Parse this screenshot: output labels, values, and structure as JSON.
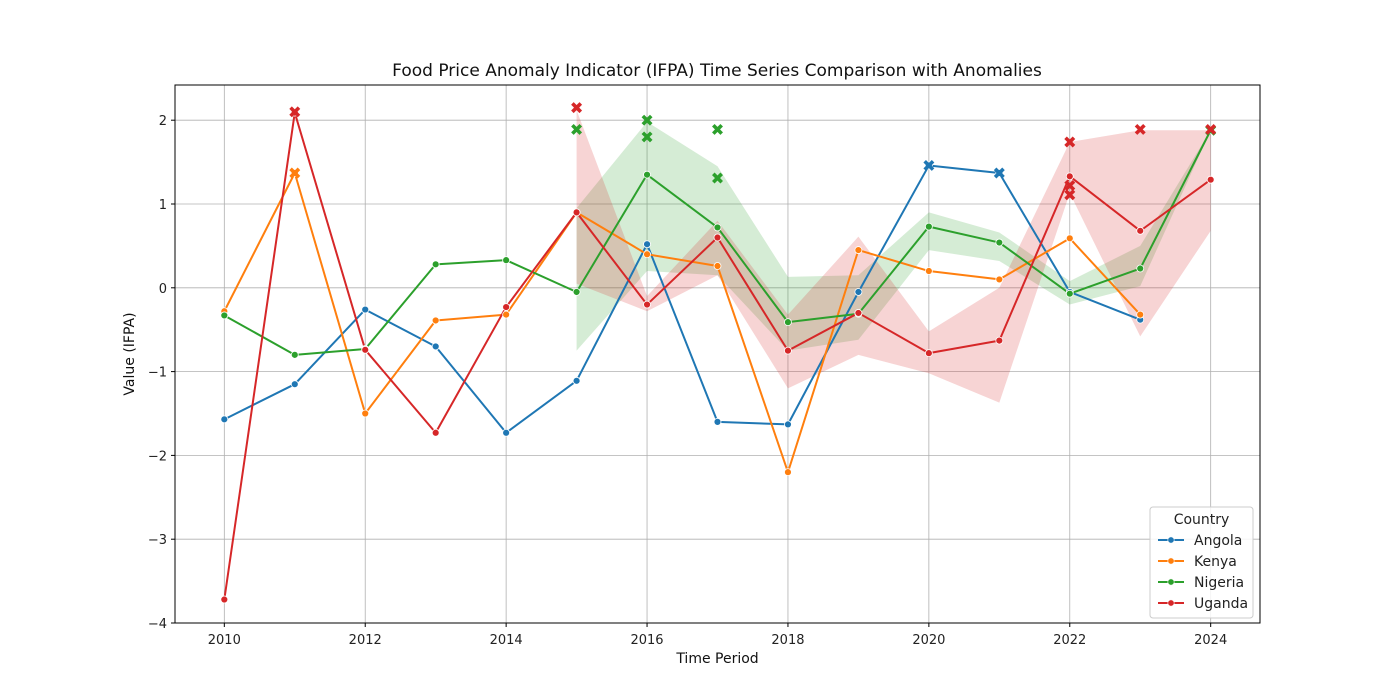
{
  "chart_data": {
    "type": "line",
    "title": "Food Price Anomaly Indicator (IFPA) Time Series Comparison with Anomalies",
    "xlabel": "Time Period",
    "ylabel": "Value (IFPA)",
    "xlim": [
      2009.3,
      2024.7
    ],
    "ylim": [
      -4.0,
      2.42
    ],
    "xticks": [
      2010,
      2012,
      2014,
      2016,
      2018,
      2020,
      2022,
      2024
    ],
    "xtick_labels": [
      "2010",
      "2012",
      "2014",
      "2016",
      "2018",
      "2020",
      "2022",
      "2024"
    ],
    "yticks": [
      -4,
      -3,
      -2,
      -1,
      0,
      1,
      2
    ],
    "ytick_labels": [
      "−4",
      "−3",
      "−2",
      "−1",
      "0",
      "1",
      "2"
    ],
    "grid": true,
    "legend": {
      "title": "Country",
      "placement": "lower-right"
    },
    "series": [
      {
        "name": "Angola",
        "color": "#1f77b4",
        "x": [
          2010,
          2011,
          2012,
          2013,
          2014,
          2015,
          2016,
          2017,
          2018,
          2019,
          2020,
          2021,
          2022,
          2023
        ],
        "y": [
          -1.57,
          -1.15,
          -0.26,
          -0.7,
          -1.73,
          -1.11,
          0.52,
          -1.6,
          -1.63,
          -0.05,
          1.46,
          1.37,
          -0.05,
          -0.38
        ],
        "band": null,
        "anomalies": [
          {
            "x": 2020,
            "y": 1.46
          },
          {
            "x": 2021,
            "y": 1.37
          }
        ]
      },
      {
        "name": "Kenya",
        "color": "#ff7f0e",
        "x": [
          2010,
          2011,
          2012,
          2013,
          2014,
          2015,
          2016,
          2017,
          2018,
          2019,
          2020,
          2021,
          2022,
          2023
        ],
        "y": [
          -0.28,
          1.37,
          -1.5,
          -0.39,
          -0.32,
          0.9,
          0.4,
          0.26,
          -2.2,
          0.45,
          0.2,
          0.1,
          0.59,
          -0.32
        ],
        "band": null,
        "anomalies": [
          {
            "x": 2011,
            "y": 1.37
          }
        ]
      },
      {
        "name": "Nigeria",
        "color": "#2ca02c",
        "x": [
          2010,
          2011,
          2012,
          2013,
          2014,
          2015,
          2016,
          2017,
          2018,
          2019,
          2020,
          2021,
          2022,
          2023,
          2024
        ],
        "y": [
          -0.33,
          -0.8,
          -0.73,
          0.28,
          0.33,
          -0.05,
          1.35,
          0.72,
          -0.41,
          -0.31,
          0.73,
          0.54,
          -0.07,
          0.23,
          1.88
        ],
        "band": {
          "x": [
            2015,
            2016,
            2017,
            2018,
            2019,
            2020,
            2021,
            2022,
            2023,
            2024
          ],
          "lower": [
            -0.75,
            0.2,
            0.15,
            -0.75,
            -0.62,
            0.45,
            0.32,
            -0.2,
            0.02,
            1.88
          ],
          "upper": [
            0.95,
            1.98,
            1.45,
            0.13,
            0.15,
            0.9,
            0.66,
            0.08,
            0.5,
            1.88
          ]
        },
        "anomalies": [
          {
            "x": 2015,
            "y": 1.89
          },
          {
            "x": 2016,
            "y": 2.0
          },
          {
            "x": 2016,
            "y": 1.8
          },
          {
            "x": 2017,
            "y": 1.89
          },
          {
            "x": 2017,
            "y": 1.31
          },
          {
            "x": 2024,
            "y": 1.88
          }
        ]
      },
      {
        "name": "Uganda",
        "color": "#d62728",
        "x": [
          2010,
          2011,
          2012,
          2013,
          2014,
          2015,
          2016,
          2017,
          2018,
          2019,
          2020,
          2021,
          2022,
          2023,
          2024
        ],
        "y": [
          -3.72,
          2.09,
          -0.74,
          -1.73,
          -0.23,
          0.9,
          -0.2,
          0.6,
          -0.75,
          -0.3,
          -0.78,
          -0.63,
          1.33,
          0.68,
          1.29
        ],
        "band": {
          "x": [
            2015,
            2016,
            2017,
            2018,
            2019,
            2020,
            2021,
            2022,
            2023,
            2024
          ],
          "lower": [
            0.05,
            -0.28,
            0.15,
            -1.2,
            -0.8,
            -1.02,
            -1.37,
            1.13,
            -0.58,
            0.68
          ],
          "upper": [
            2.12,
            -0.1,
            0.8,
            -0.32,
            0.61,
            -0.52,
            0.0,
            1.74,
            1.88,
            1.88
          ]
        },
        "anomalies": [
          {
            "x": 2011,
            "y": 2.1
          },
          {
            "x": 2015,
            "y": 2.15
          },
          {
            "x": 2022,
            "y": 1.74
          },
          {
            "x": 2022,
            "y": 1.22
          },
          {
            "x": 2022,
            "y": 1.11
          },
          {
            "x": 2023,
            "y": 1.89
          },
          {
            "x": 2024,
            "y": 1.89
          }
        ]
      }
    ]
  }
}
